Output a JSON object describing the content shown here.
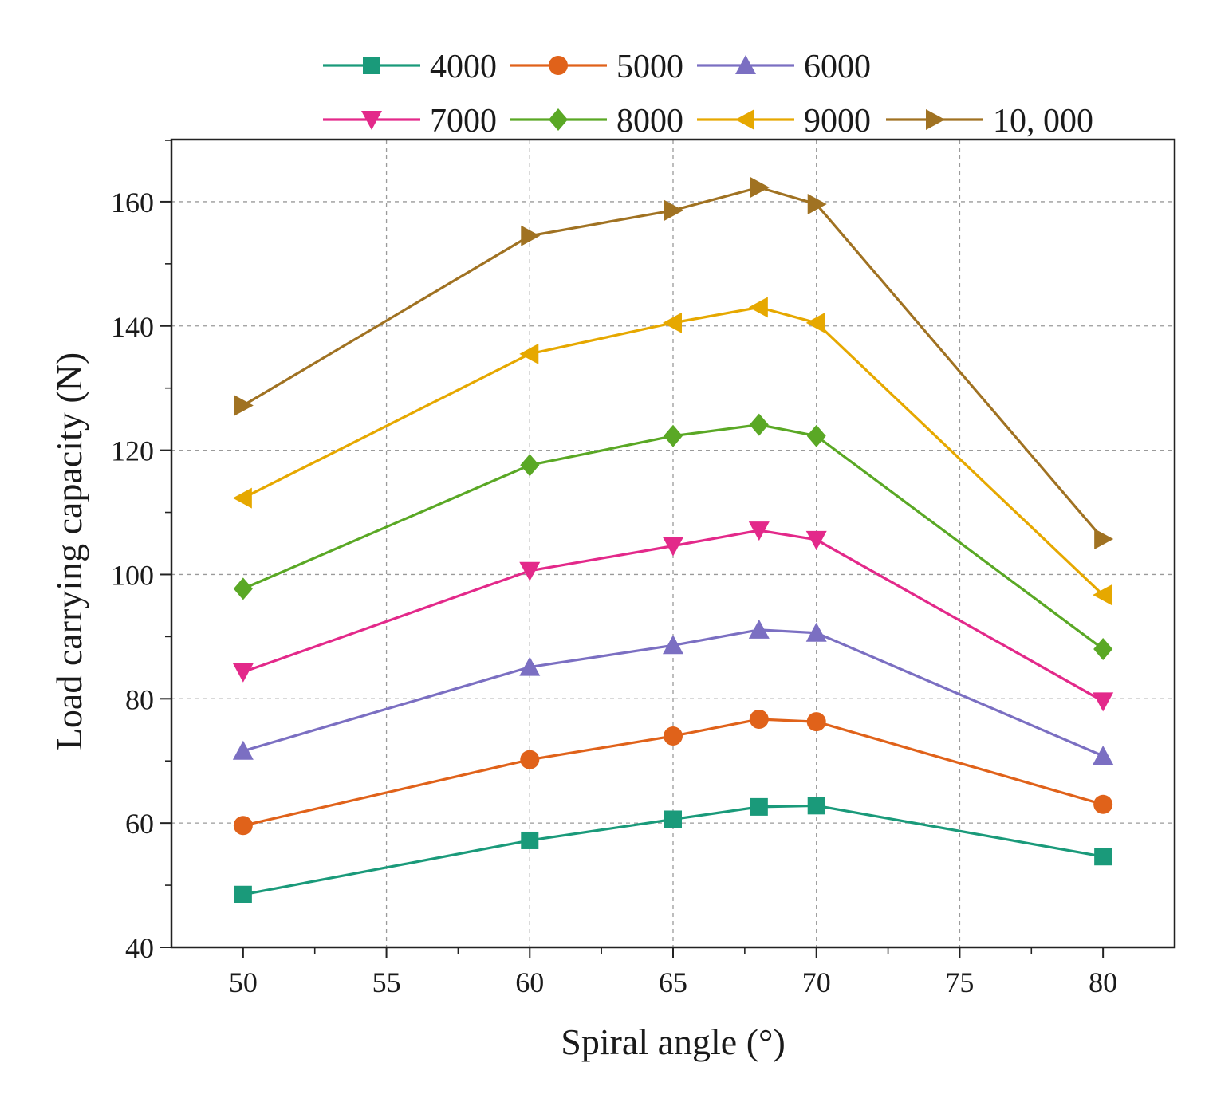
{
  "chart_data": {
    "type": "line",
    "title": "",
    "xlabel": "Spiral angle (°)",
    "ylabel": "Load carrying capacity (N)",
    "x": [
      50,
      60,
      65,
      68,
      70,
      80
    ],
    "xlim": [
      47.5,
      82.5
    ],
    "ylim": [
      40,
      170
    ],
    "xticks": [
      50,
      55,
      60,
      65,
      70,
      75,
      80
    ],
    "yticks": [
      40,
      60,
      80,
      100,
      120,
      140,
      160
    ],
    "grid": true,
    "legend_position": "top",
    "series": [
      {
        "name": "4000",
        "marker": "square",
        "color": "#1a9a7a",
        "values": [
          48.5,
          57.2,
          60.6,
          62.6,
          62.8,
          54.6
        ]
      },
      {
        "name": "5000",
        "marker": "circle",
        "color": "#e0621a",
        "values": [
          59.6,
          70.2,
          74.0,
          76.7,
          76.3,
          63.0
        ]
      },
      {
        "name": "6000",
        "marker": "triangle-up",
        "color": "#7b6fc2",
        "values": [
          71.6,
          85.1,
          88.6,
          91.1,
          90.6,
          70.8
        ]
      },
      {
        "name": "7000",
        "marker": "triangle-down",
        "color": "#e3298a",
        "values": [
          84.3,
          100.6,
          104.6,
          107.1,
          105.6,
          79.6
        ]
      },
      {
        "name": "8000",
        "marker": "diamond",
        "color": "#5aa825",
        "values": [
          97.7,
          117.6,
          122.3,
          124.1,
          122.3,
          88.0
        ]
      },
      {
        "name": "9000",
        "marker": "triangle-left",
        "color": "#e6a800",
        "values": [
          112.3,
          135.5,
          140.5,
          143.0,
          140.5,
          96.7
        ]
      },
      {
        "name": "10, 000",
        "marker": "triangle-right",
        "color": "#a07222",
        "values": [
          127.2,
          154.5,
          158.6,
          162.3,
          159.6,
          105.7
        ]
      }
    ]
  }
}
